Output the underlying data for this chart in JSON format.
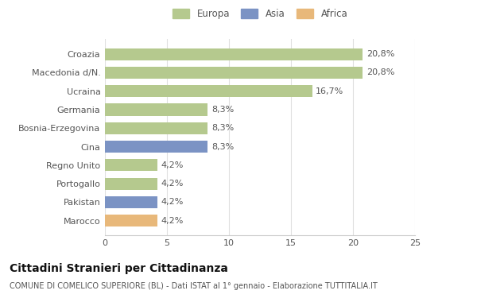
{
  "categories": [
    "Croazia",
    "Macedonia d/N.",
    "Ucraina",
    "Germania",
    "Bosnia-Erzegovina",
    "Cina",
    "Regno Unito",
    "Portogallo",
    "Pakistan",
    "Marocco"
  ],
  "values": [
    20.8,
    20.8,
    16.7,
    8.3,
    8.3,
    8.3,
    4.2,
    4.2,
    4.2,
    4.2
  ],
  "labels": [
    "20,8%",
    "20,8%",
    "16,7%",
    "8,3%",
    "8,3%",
    "8,3%",
    "4,2%",
    "4,2%",
    "4,2%",
    "4,2%"
  ],
  "continents": [
    "Europa",
    "Europa",
    "Europa",
    "Europa",
    "Europa",
    "Asia",
    "Europa",
    "Europa",
    "Asia",
    "Africa"
  ],
  "colors": {
    "Europa": "#b5c98e",
    "Asia": "#7b93c4",
    "Africa": "#e8b87a"
  },
  "legend": [
    "Europa",
    "Asia",
    "Africa"
  ],
  "legend_colors": [
    "#b5c98e",
    "#7b93c4",
    "#e8b87a"
  ],
  "xlim": [
    0,
    25
  ],
  "xticks": [
    0,
    5,
    10,
    15,
    20,
    25
  ],
  "title": "Cittadini Stranieri per Cittadinanza",
  "subtitle": "COMUNE DI COMELICO SUPERIORE (BL) - Dati ISTAT al 1° gennaio - Elaborazione TUTTITALIA.IT",
  "bg_color": "#ffffff",
  "bar_height": 0.65,
  "grid_color": "#e0e0e0",
  "label_fontsize": 8,
  "tick_fontsize": 8,
  "title_fontsize": 10,
  "subtitle_fontsize": 7
}
